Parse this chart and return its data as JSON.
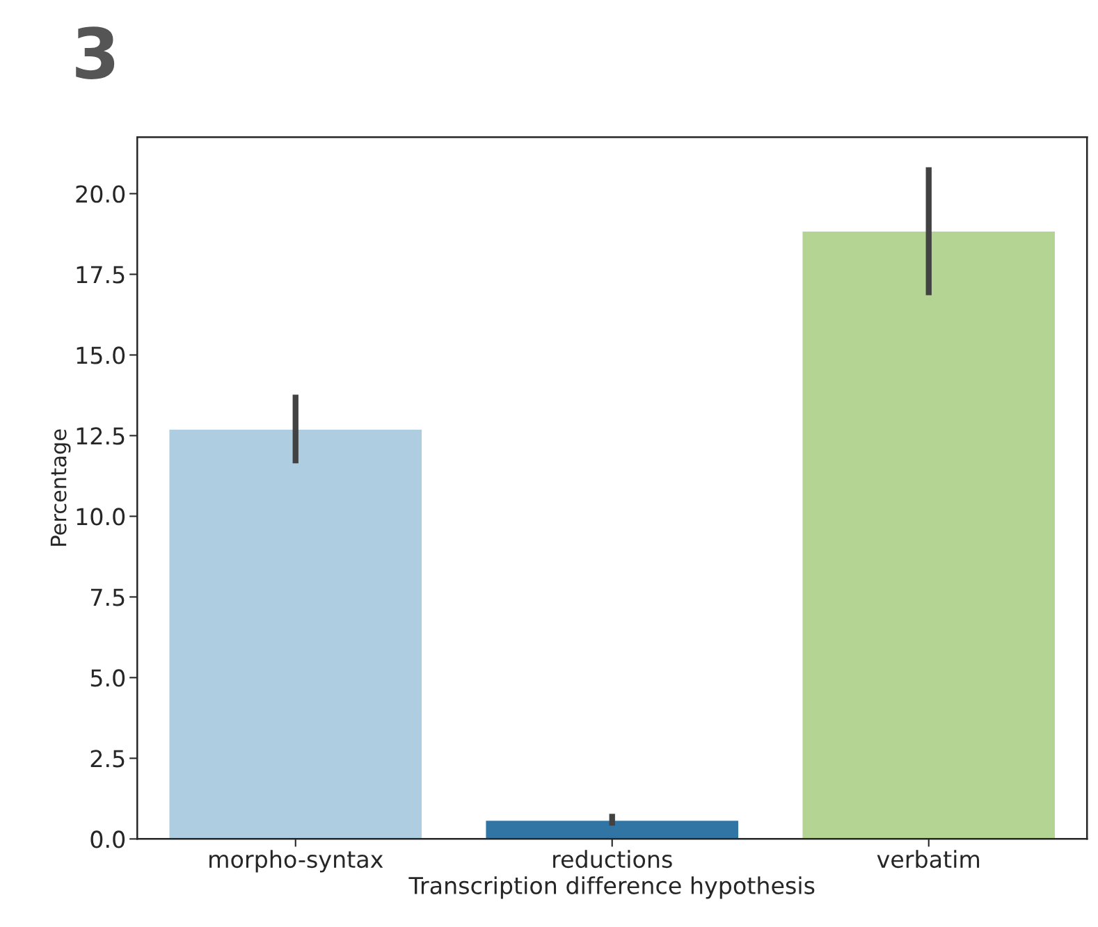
{
  "chart_data": {
    "type": "bar",
    "title": "3",
    "xlabel": "Transcription difference hypothesis",
    "ylabel": "Percentage",
    "categories": [
      "morpho-syntax",
      "reductions",
      "verbatim"
    ],
    "values": [
      12.7,
      0.58,
      18.84
    ],
    "colors": [
      "#aecde1",
      "#3075a4",
      "#b4d493"
    ],
    "errors": [
      [
        11.64,
        13.77
      ],
      [
        0.41,
        0.78
      ],
      [
        16.85,
        20.82
      ]
    ],
    "ylim": [
      0,
      21.75
    ],
    "yticks": [
      {
        "value": 0,
        "label": "0.0"
      },
      {
        "value": 2.5,
        "label": "2.5"
      },
      {
        "value": 5,
        "label": "5.0"
      },
      {
        "value": 7.5,
        "label": "7.5"
      },
      {
        "value": 10,
        "label": "10.0"
      },
      {
        "value": 12.5,
        "label": "12.5"
      },
      {
        "value": 15,
        "label": "15.0"
      },
      {
        "value": 17.5,
        "label": "17.5"
      },
      {
        "value": 20,
        "label": "20.0"
      }
    ],
    "grid": false,
    "legend": false
  }
}
